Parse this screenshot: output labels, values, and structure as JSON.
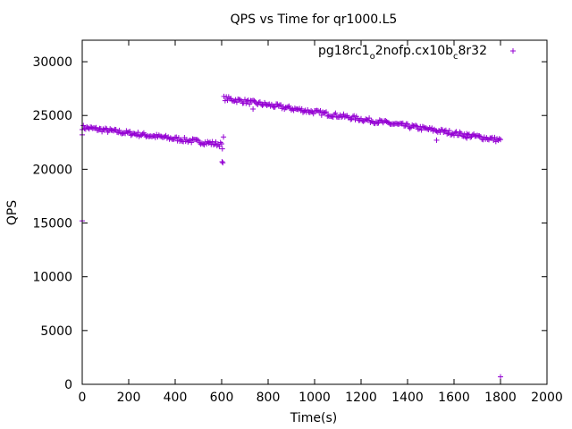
{
  "chart_data": {
    "type": "scatter",
    "title": "QPS vs Time for qr1000.L5",
    "xlabel": "Time(s)",
    "ylabel": "QPS",
    "xlim": [
      0,
      2000
    ],
    "ylim": [
      0,
      32000
    ],
    "xticks": [
      0,
      200,
      400,
      600,
      800,
      1000,
      1200,
      1400,
      1600,
      1800,
      2000
    ],
    "yticks": [
      0,
      5000,
      10000,
      15000,
      20000,
      25000,
      30000
    ],
    "grid": false,
    "legend_position": "top-right",
    "legend": {
      "main": "pg18rc1",
      "sub1": "o",
      "mid": "2nofp.cx10b",
      "sub2": "c",
      "tail": "8r32"
    },
    "series": [
      {
        "color": "#9400d3",
        "marker": "plus",
        "segments": [
          {
            "x_start": 0,
            "x_end": 600,
            "y_start": 23900,
            "y_end": 22300,
            "step": 5
          },
          {
            "x_start": 610,
            "x_end": 1800,
            "y_start": 26600,
            "y_end": 22700,
            "step": 5
          }
        ],
        "outliers": [
          {
            "x": 0,
            "y": 15200
          },
          {
            "x": 0,
            "y": 23200
          },
          {
            "x": 602,
            "y": 20700
          },
          {
            "x": 605,
            "y": 20600
          },
          {
            "x": 608,
            "y": 23000
          },
          {
            "x": 603,
            "y": 21900
          },
          {
            "x": 735,
            "y": 25600
          },
          {
            "x": 1525,
            "y": 22700
          },
          {
            "x": 1655,
            "y": 22900
          },
          {
            "x": 1800,
            "y": 700
          }
        ]
      }
    ]
  }
}
